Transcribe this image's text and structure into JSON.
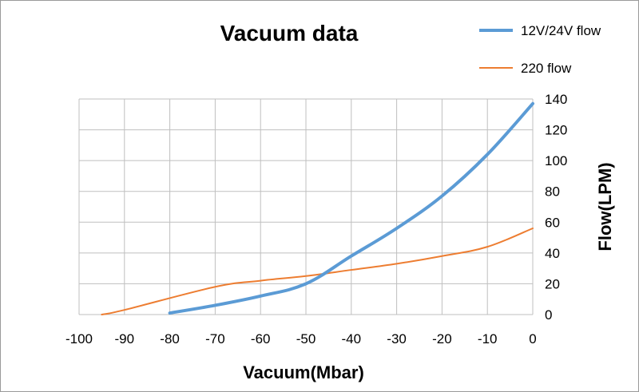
{
  "chart_data": {
    "type": "line",
    "title": "Vacuum data",
    "xlabel": "Vacuum(Mbar)",
    "ylabel": "Flow(LPM)",
    "xlim": [
      -100,
      0
    ],
    "ylim": [
      0,
      140
    ],
    "x_ticks": [
      "-100",
      "-90",
      "-80",
      "-70",
      "-60",
      "-50",
      "-40",
      "-30",
      "-20",
      "-10",
      "0"
    ],
    "y_ticks": [
      "0",
      "20",
      "40",
      "60",
      "80",
      "100",
      "120",
      "140"
    ],
    "y_axis_side": "right",
    "grid": true,
    "legend_position": "top-right",
    "series": [
      {
        "name": "12V/24V flow",
        "color": "#5B9BD5",
        "x": [
          -80,
          -70,
          -60,
          -50,
          -40,
          -30,
          -20,
          -10,
          0
        ],
        "y": [
          1,
          6,
          12,
          20,
          38,
          56,
          77,
          104,
          137
        ]
      },
      {
        "name": "220 flow",
        "color": "#ED7D31",
        "x": [
          -95,
          -90,
          -70,
          -60,
          -50,
          -40,
          -30,
          -20,
          -10,
          0
        ],
        "y": [
          0,
          3,
          18,
          22,
          25,
          29,
          33,
          38,
          44,
          56
        ]
      }
    ]
  }
}
